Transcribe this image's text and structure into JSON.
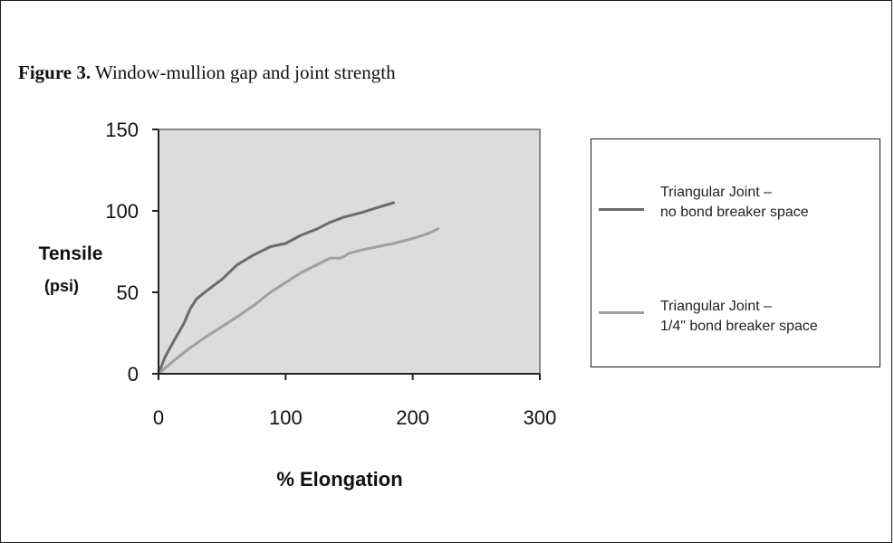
{
  "caption": {
    "label": "Figure 3.",
    "text": " Window-mullion gap and joint strength"
  },
  "colors": {
    "plot_background": "#dcdcdc",
    "series_1": "#6b6b6b",
    "series_2": "#a0a0a0",
    "axis": "#222222"
  },
  "chart_data": {
    "type": "line",
    "title": "Figure 3. Window-mullion gap and joint strength",
    "xlabel": "% Elongation",
    "ylabel": "Tensile",
    "ylabel_unit": "(psi)",
    "xlim": [
      0,
      300
    ],
    "ylim": [
      0,
      150
    ],
    "xticks": [
      0,
      100,
      200,
      300
    ],
    "yticks": [
      0,
      50,
      100,
      150
    ],
    "grid": false,
    "legend_position": "right",
    "series": [
      {
        "name": "Triangular Joint – no bond breaker space",
        "legend_lines": [
          "Triangular Joint –",
          "no bond breaker space"
        ],
        "x": [
          0,
          5,
          12,
          20,
          25,
          30,
          38,
          50,
          62,
          75,
          88,
          100,
          112,
          125,
          135,
          142,
          145,
          150,
          160,
          172,
          185
        ],
        "y": [
          0,
          10,
          20,
          31,
          40,
          46,
          51,
          58,
          67,
          73,
          78,
          80,
          85,
          89,
          93,
          95,
          96,
          97,
          99,
          102,
          105
        ]
      },
      {
        "name": "Triangular Joint – 1/4\" bond breaker space",
        "legend_lines": [
          "Triangular Joint –",
          "1/4\" bond breaker space"
        ],
        "x": [
          0,
          12,
          25,
          38,
          50,
          62,
          75,
          88,
          100,
          112,
          125,
          135,
          143,
          146,
          150,
          160,
          172,
          185,
          200,
          212,
          220
        ],
        "y": [
          0,
          8,
          16,
          23,
          29,
          35,
          42,
          50,
          56,
          62,
          67,
          71,
          71,
          72,
          74,
          76,
          78,
          80,
          83,
          86,
          89
        ]
      }
    ]
  }
}
